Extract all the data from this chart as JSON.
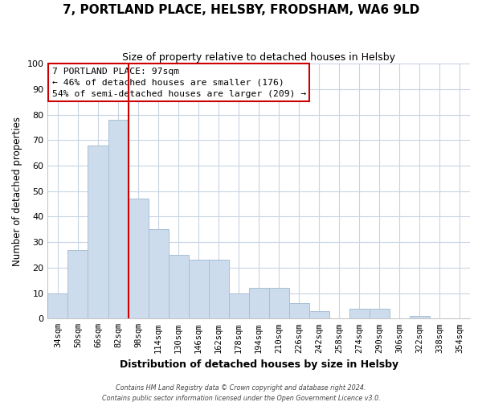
{
  "title": "7, PORTLAND PLACE, HELSBY, FRODSHAM, WA6 9LD",
  "subtitle": "Size of property relative to detached houses in Helsby",
  "xlabel": "Distribution of detached houses by size in Helsby",
  "ylabel": "Number of detached properties",
  "bar_color": "#cddcec",
  "bar_edgecolor": "#a8bfd4",
  "bin_labels": [
    "34sqm",
    "50sqm",
    "66sqm",
    "82sqm",
    "98sqm",
    "114sqm",
    "130sqm",
    "146sqm",
    "162sqm",
    "178sqm",
    "194sqm",
    "210sqm",
    "226sqm",
    "242sqm",
    "258sqm",
    "274sqm",
    "290sqm",
    "306sqm",
    "322sqm",
    "338sqm",
    "354sqm"
  ],
  "bar_heights": [
    10,
    27,
    68,
    78,
    47,
    35,
    25,
    23,
    23,
    10,
    12,
    12,
    6,
    3,
    0,
    4,
    4,
    0,
    1,
    0,
    0
  ],
  "vline_color": "#cc0000",
  "ylim": [
    0,
    100
  ],
  "annotation_title": "7 PORTLAND PLACE: 97sqm",
  "annotation_line1": "← 46% of detached houses are smaller (176)",
  "annotation_line2": "54% of semi-detached houses are larger (209) →",
  "annotation_box_color": "#cc0000",
  "footer1": "Contains HM Land Registry data © Crown copyright and database right 2024.",
  "footer2": "Contains public sector information licensed under the Open Government Licence v3.0.",
  "grid_color": "#c8d4e4",
  "background_color": "#ffffff",
  "plot_bg_color": "#ffffff"
}
